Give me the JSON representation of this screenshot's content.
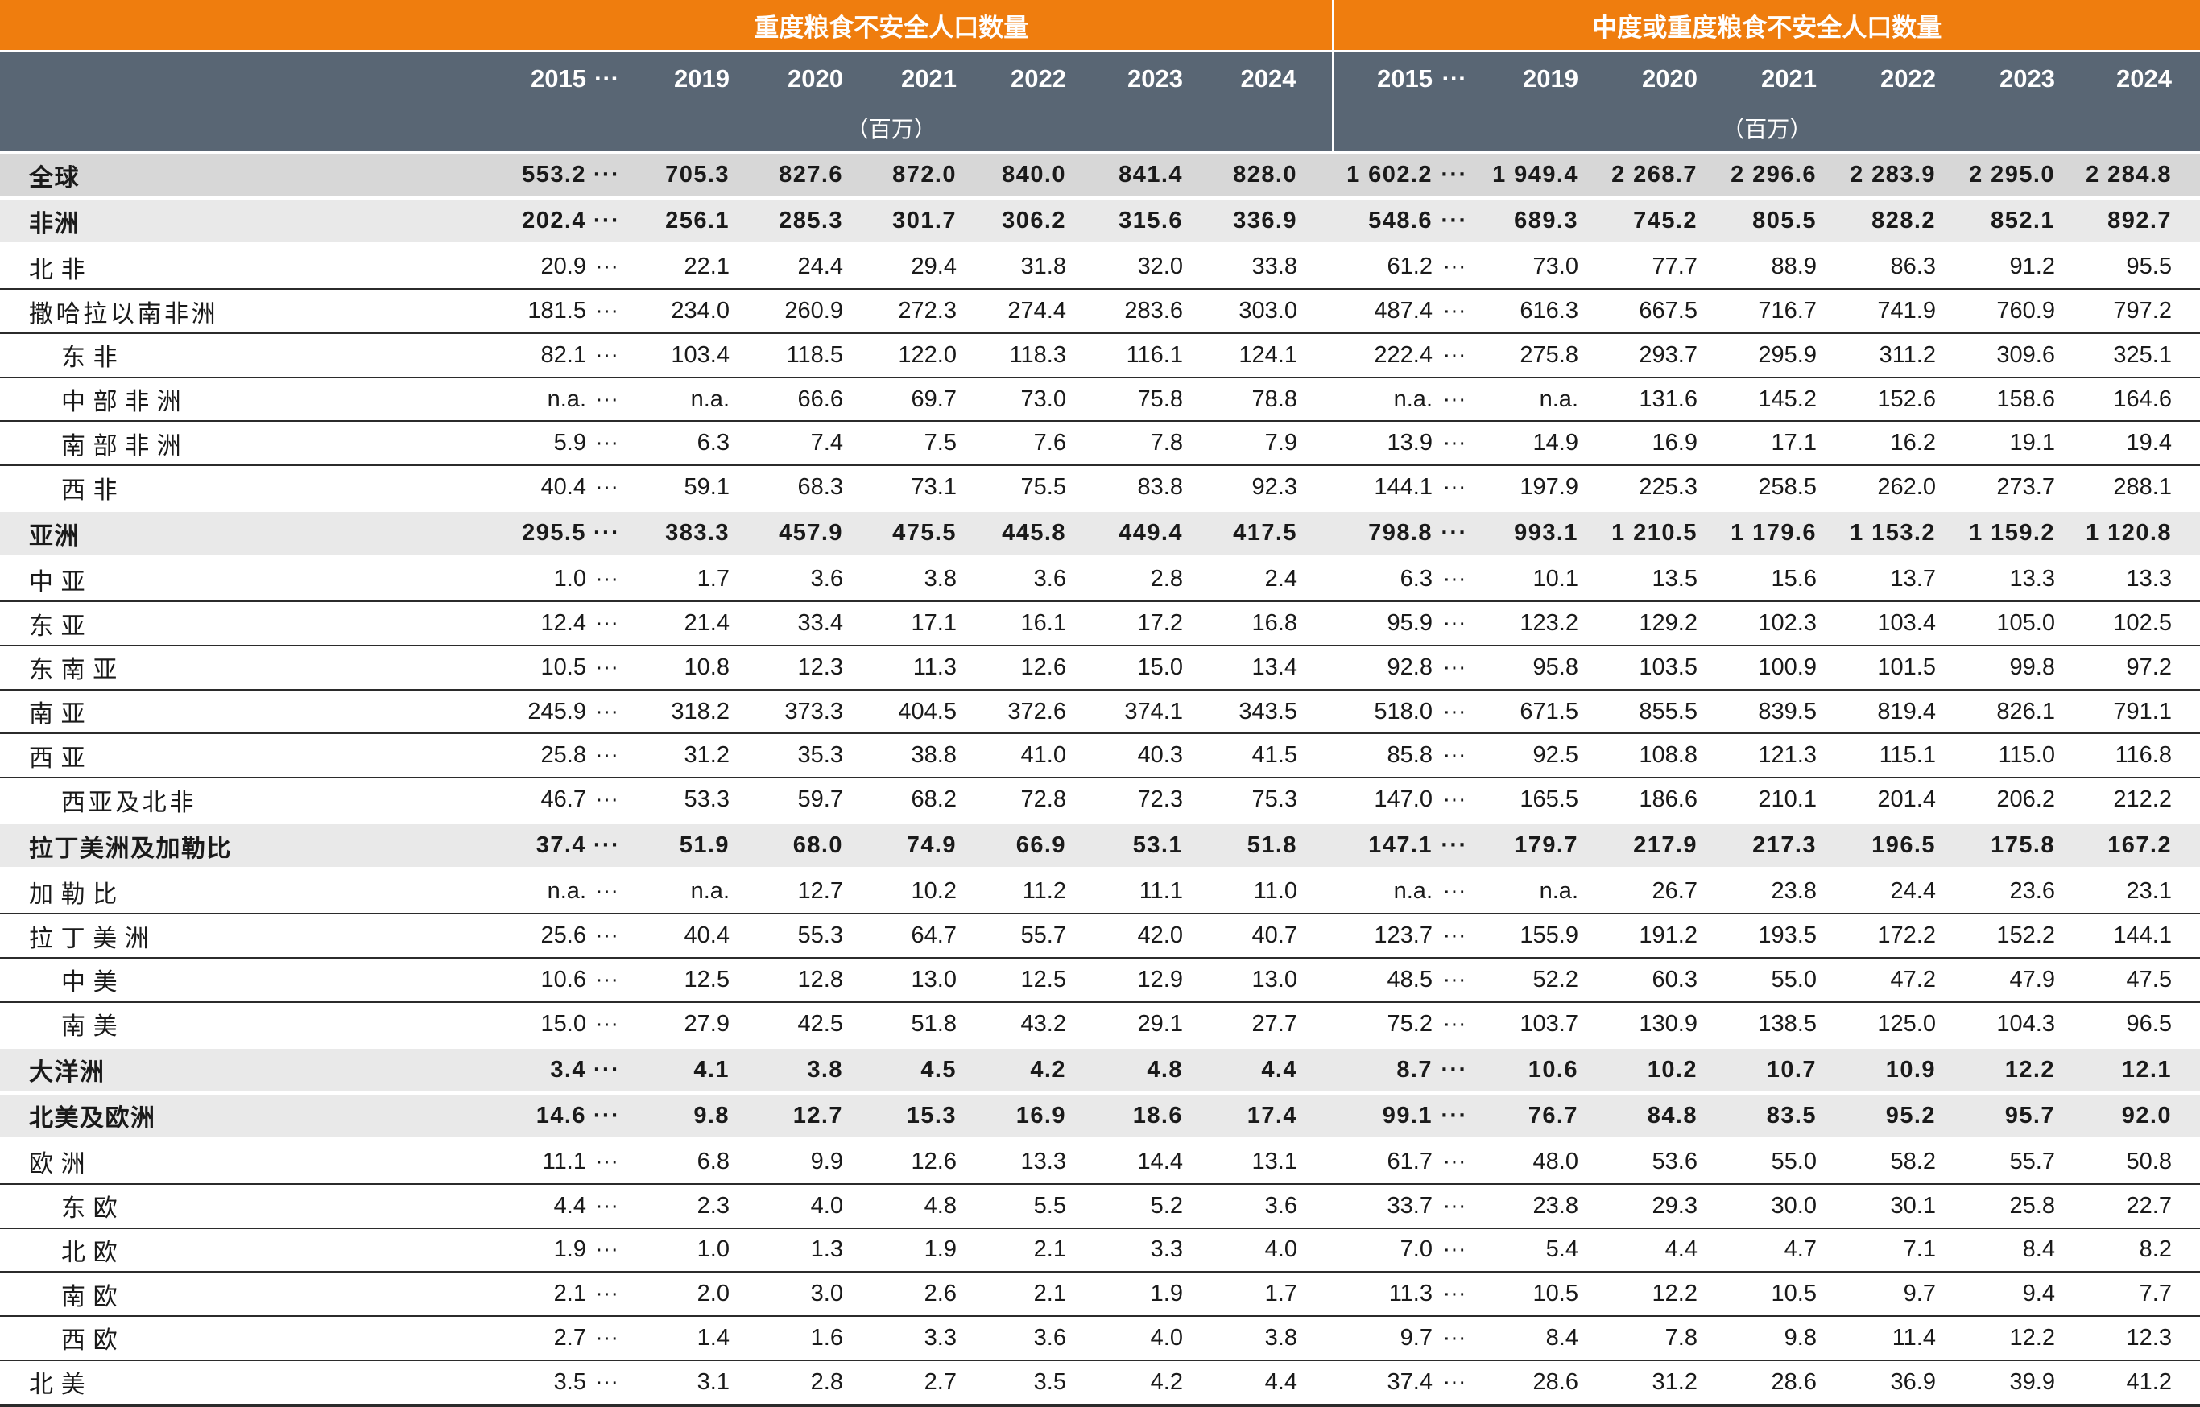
{
  "header": {
    "group_severe": "重度粮食不安全人口数量",
    "group_moderate_severe": "中度或重度粮食不安全人口数量",
    "years": [
      "2015",
      "···",
      "2019",
      "2020",
      "2021",
      "2022",
      "2023",
      "2024"
    ],
    "unit": "（百万）"
  },
  "table": {
    "ellipsis": "···",
    "rows": [
      {
        "label": "全球",
        "indent": 1,
        "band": "dark",
        "sep": false,
        "severe": [
          "553.2",
          "705.3",
          "827.6",
          "872.0",
          "840.0",
          "841.4",
          "828.0"
        ],
        "moderate_or_severe": [
          "1 602.2",
          "1 949.4",
          "2 268.7",
          "2 296.6",
          "2 283.9",
          "2 295.0",
          "2 284.8"
        ]
      },
      {
        "label": "非洲",
        "indent": 1,
        "band": "light",
        "sep": false,
        "severe": [
          "202.4",
          "256.1",
          "285.3",
          "301.7",
          "306.2",
          "315.6",
          "336.9"
        ],
        "moderate_or_severe": [
          "548.6",
          "689.3",
          "745.2",
          "805.5",
          "828.2",
          "852.1",
          "892.7"
        ]
      },
      {
        "label": "北非",
        "indent": 1,
        "band": null,
        "sep": false,
        "severe": [
          "20.9",
          "22.1",
          "24.4",
          "29.4",
          "31.8",
          "32.0",
          "33.8"
        ],
        "moderate_or_severe": [
          "61.2",
          "73.0",
          "77.7",
          "88.9",
          "86.3",
          "91.2",
          "95.5"
        ]
      },
      {
        "label": "撒哈拉以南非洲",
        "indent": 1,
        "band": null,
        "sep": true,
        "severe": [
          "181.5",
          "234.0",
          "260.9",
          "272.3",
          "274.4",
          "283.6",
          "303.0"
        ],
        "moderate_or_severe": [
          "487.4",
          "616.3",
          "667.5",
          "716.7",
          "741.9",
          "760.9",
          "797.2"
        ]
      },
      {
        "label": "东非",
        "indent": 2,
        "band": null,
        "sep": true,
        "severe": [
          "82.1",
          "103.4",
          "118.5",
          "122.0",
          "118.3",
          "116.1",
          "124.1"
        ],
        "moderate_or_severe": [
          "222.4",
          "275.8",
          "293.7",
          "295.9",
          "311.2",
          "309.6",
          "325.1"
        ]
      },
      {
        "label": "中部非洲",
        "indent": 2,
        "band": null,
        "sep": true,
        "severe": [
          "n.a.",
          "n.a.",
          "66.6",
          "69.7",
          "73.0",
          "75.8",
          "78.8"
        ],
        "moderate_or_severe": [
          "n.a.",
          "n.a.",
          "131.6",
          "145.2",
          "152.6",
          "158.6",
          "164.6"
        ]
      },
      {
        "label": "南部非洲",
        "indent": 2,
        "band": null,
        "sep": true,
        "severe": [
          "5.9",
          "6.3",
          "7.4",
          "7.5",
          "7.6",
          "7.8",
          "7.9"
        ],
        "moderate_or_severe": [
          "13.9",
          "14.9",
          "16.9",
          "17.1",
          "16.2",
          "19.1",
          "19.4"
        ]
      },
      {
        "label": "西非",
        "indent": 2,
        "band": null,
        "sep": true,
        "severe": [
          "40.4",
          "59.1",
          "68.3",
          "73.1",
          "75.5",
          "83.8",
          "92.3"
        ],
        "moderate_or_severe": [
          "144.1",
          "197.9",
          "225.3",
          "258.5",
          "262.0",
          "273.7",
          "288.1"
        ]
      },
      {
        "label": "亚洲",
        "indent": 1,
        "band": "light",
        "sep": false,
        "severe": [
          "295.5",
          "383.3",
          "457.9",
          "475.5",
          "445.8",
          "449.4",
          "417.5"
        ],
        "moderate_or_severe": [
          "798.8",
          "993.1",
          "1 210.5",
          "1 179.6",
          "1 153.2",
          "1 159.2",
          "1 120.8"
        ]
      },
      {
        "label": "中亚",
        "indent": 1,
        "band": null,
        "sep": false,
        "severe": [
          "1.0",
          "1.7",
          "3.6",
          "3.8",
          "3.6",
          "2.8",
          "2.4"
        ],
        "moderate_or_severe": [
          "6.3",
          "10.1",
          "13.5",
          "15.6",
          "13.7",
          "13.3",
          "13.3"
        ]
      },
      {
        "label": "东亚",
        "indent": 1,
        "band": null,
        "sep": true,
        "severe": [
          "12.4",
          "21.4",
          "33.4",
          "17.1",
          "16.1",
          "17.2",
          "16.8"
        ],
        "moderate_or_severe": [
          "95.9",
          "123.2",
          "129.2",
          "102.3",
          "103.4",
          "105.0",
          "102.5"
        ]
      },
      {
        "label": "东南亚",
        "indent": 1,
        "band": null,
        "sep": true,
        "severe": [
          "10.5",
          "10.8",
          "12.3",
          "11.3",
          "12.6",
          "15.0",
          "13.4"
        ],
        "moderate_or_severe": [
          "92.8",
          "95.8",
          "103.5",
          "100.9",
          "101.5",
          "99.8",
          "97.2"
        ]
      },
      {
        "label": "南亚",
        "indent": 1,
        "band": null,
        "sep": true,
        "severe": [
          "245.9",
          "318.2",
          "373.3",
          "404.5",
          "372.6",
          "374.1",
          "343.5"
        ],
        "moderate_or_severe": [
          "518.0",
          "671.5",
          "855.5",
          "839.5",
          "819.4",
          "826.1",
          "791.1"
        ]
      },
      {
        "label": "西亚",
        "indent": 1,
        "band": null,
        "sep": true,
        "severe": [
          "25.8",
          "31.2",
          "35.3",
          "38.8",
          "41.0",
          "40.3",
          "41.5"
        ],
        "moderate_or_severe": [
          "85.8",
          "92.5",
          "108.8",
          "121.3",
          "115.1",
          "115.0",
          "116.8"
        ]
      },
      {
        "label": "西亚及北非",
        "indent": 2,
        "band": null,
        "sep": true,
        "severe": [
          "46.7",
          "53.3",
          "59.7",
          "68.2",
          "72.8",
          "72.3",
          "75.3"
        ],
        "moderate_or_severe": [
          "147.0",
          "165.5",
          "186.6",
          "210.1",
          "201.4",
          "206.2",
          "212.2"
        ]
      },
      {
        "label": "拉丁美洲及加勒比",
        "indent": 1,
        "band": "light",
        "sep": false,
        "severe": [
          "37.4",
          "51.9",
          "68.0",
          "74.9",
          "66.9",
          "53.1",
          "51.8"
        ],
        "moderate_or_severe": [
          "147.1",
          "179.7",
          "217.9",
          "217.3",
          "196.5",
          "175.8",
          "167.2"
        ]
      },
      {
        "label": "加勒比",
        "indent": 1,
        "band": null,
        "sep": false,
        "severe": [
          "n.a.",
          "n.a.",
          "12.7",
          "10.2",
          "11.2",
          "11.1",
          "11.0"
        ],
        "moderate_or_severe": [
          "n.a.",
          "n.a.",
          "26.7",
          "23.8",
          "24.4",
          "23.6",
          "23.1"
        ]
      },
      {
        "label": "拉丁美洲",
        "indent": 1,
        "band": null,
        "sep": true,
        "severe": [
          "25.6",
          "40.4",
          "55.3",
          "64.7",
          "55.7",
          "42.0",
          "40.7"
        ],
        "moderate_or_severe": [
          "123.7",
          "155.9",
          "191.2",
          "193.5",
          "172.2",
          "152.2",
          "144.1"
        ]
      },
      {
        "label": "中美",
        "indent": 2,
        "band": null,
        "sep": true,
        "severe": [
          "10.6",
          "12.5",
          "12.8",
          "13.0",
          "12.5",
          "12.9",
          "13.0"
        ],
        "moderate_or_severe": [
          "48.5",
          "52.2",
          "60.3",
          "55.0",
          "47.2",
          "47.9",
          "47.5"
        ]
      },
      {
        "label": "南美",
        "indent": 2,
        "band": null,
        "sep": true,
        "severe": [
          "15.0",
          "27.9",
          "42.5",
          "51.8",
          "43.2",
          "29.1",
          "27.7"
        ],
        "moderate_or_severe": [
          "75.2",
          "103.7",
          "130.9",
          "138.5",
          "125.0",
          "104.3",
          "96.5"
        ]
      },
      {
        "label": "大洋洲",
        "indent": 1,
        "band": "light",
        "sep": false,
        "severe": [
          "3.4",
          "4.1",
          "3.8",
          "4.5",
          "4.2",
          "4.8",
          "4.4"
        ],
        "moderate_or_severe": [
          "8.7",
          "10.6",
          "10.2",
          "10.7",
          "10.9",
          "12.2",
          "12.1"
        ]
      },
      {
        "label": "北美及欧洲",
        "indent": 1,
        "band": "light",
        "sep": false,
        "severe": [
          "14.6",
          "9.8",
          "12.7",
          "15.3",
          "16.9",
          "18.6",
          "17.4"
        ],
        "moderate_or_severe": [
          "99.1",
          "76.7",
          "84.8",
          "83.5",
          "95.2",
          "95.7",
          "92.0"
        ]
      },
      {
        "label": "欧洲",
        "indent": 1,
        "band": null,
        "sep": false,
        "severe": [
          "11.1",
          "6.8",
          "9.9",
          "12.6",
          "13.3",
          "14.4",
          "13.1"
        ],
        "moderate_or_severe": [
          "61.7",
          "48.0",
          "53.6",
          "55.0",
          "58.2",
          "55.7",
          "50.8"
        ]
      },
      {
        "label": "东欧",
        "indent": 2,
        "band": null,
        "sep": true,
        "severe": [
          "4.4",
          "2.3",
          "4.0",
          "4.8",
          "5.5",
          "5.2",
          "3.6"
        ],
        "moderate_or_severe": [
          "33.7",
          "23.8",
          "29.3",
          "30.0",
          "30.1",
          "25.8",
          "22.7"
        ]
      },
      {
        "label": "北欧",
        "indent": 2,
        "band": null,
        "sep": true,
        "severe": [
          "1.9",
          "1.0",
          "1.3",
          "1.9",
          "2.1",
          "3.3",
          "4.0"
        ],
        "moderate_or_severe": [
          "7.0",
          "5.4",
          "4.4",
          "4.7",
          "7.1",
          "8.4",
          "8.2"
        ]
      },
      {
        "label": "南欧",
        "indent": 2,
        "band": null,
        "sep": true,
        "severe": [
          "2.1",
          "2.0",
          "3.0",
          "2.6",
          "2.1",
          "1.9",
          "1.7"
        ],
        "moderate_or_severe": [
          "11.3",
          "10.5",
          "12.2",
          "10.5",
          "9.7",
          "9.4",
          "7.7"
        ]
      },
      {
        "label": "西欧",
        "indent": 2,
        "band": null,
        "sep": true,
        "severe": [
          "2.7",
          "1.4",
          "1.6",
          "3.3",
          "3.6",
          "4.0",
          "3.8"
        ],
        "moderate_or_severe": [
          "9.7",
          "8.4",
          "7.8",
          "9.8",
          "11.4",
          "12.2",
          "12.3"
        ]
      },
      {
        "label": "北美",
        "indent": 1,
        "band": null,
        "sep": true,
        "severe": [
          "3.5",
          "3.1",
          "2.8",
          "2.7",
          "3.5",
          "4.2",
          "4.4"
        ],
        "moderate_or_severe": [
          "37.4",
          "28.6",
          "31.2",
          "28.6",
          "36.9",
          "39.9",
          "41.2"
        ]
      }
    ]
  },
  "colors": {
    "orange_band": "#ef7d0e",
    "slate_header": "#596674",
    "band_row_dark": "#d7d7d7",
    "band_row_light": "#e9e9e9",
    "separator_line": "#2b2b2b"
  }
}
